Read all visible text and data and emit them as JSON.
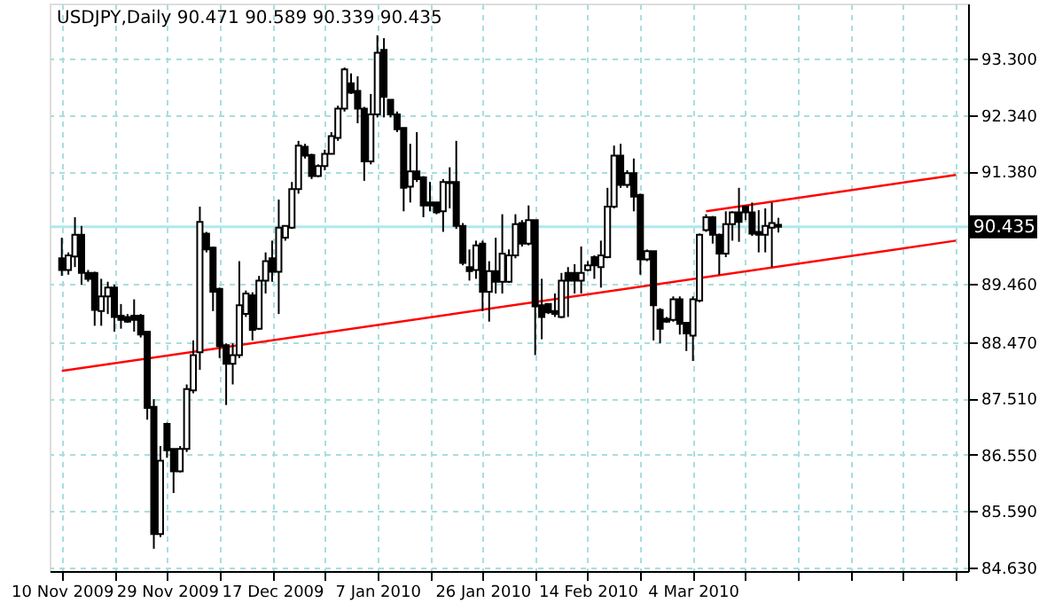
{
  "chart_data": {
    "type": "candlestick",
    "title": "USDJPY,Daily  90.471 90.589 90.339 90.435",
    "categories": [
      "10 Nov 2009",
      null,
      null,
      null,
      null,
      null,
      null,
      null,
      null,
      null,
      null,
      null,
      null,
      null,
      null,
      null,
      "29 Nov 2009",
      null,
      null,
      null,
      null,
      null,
      null,
      null,
      null,
      null,
      null,
      null,
      null,
      null,
      null,
      null,
      "17 Dec 2009",
      null,
      null,
      null,
      null,
      null,
      null,
      null,
      null,
      null,
      null,
      null,
      null,
      null,
      null,
      null,
      "7 Jan 2010",
      null,
      null,
      null,
      null,
      null,
      null,
      null,
      null,
      null,
      null,
      null,
      null,
      null,
      null,
      null,
      "26 Jan 2010",
      null,
      null,
      null,
      null,
      null,
      null,
      null,
      null,
      null,
      null,
      null,
      null,
      null,
      null,
      null,
      "14 Feb 2010",
      null,
      null,
      null,
      null,
      null,
      null,
      null,
      null,
      null,
      null,
      null,
      null,
      null,
      null,
      null,
      "4 Mar 2010",
      null,
      null,
      null,
      null,
      null,
      null,
      null,
      null,
      null,
      null,
      null,
      null,
      null,
      null,
      null,
      null,
      null,
      null,
      null,
      null,
      null,
      null,
      null,
      null,
      null,
      null,
      null,
      null,
      null,
      null,
      null,
      null,
      null,
      null,
      null,
      null,
      null,
      null,
      null,
      null
    ],
    "ohlc": [
      [
        89.9,
        90.25,
        89.6,
        89.7
      ],
      [
        89.7,
        90.0,
        89.62,
        89.95
      ],
      [
        89.93,
        90.6,
        89.75,
        90.3
      ],
      [
        90.3,
        90.45,
        89.45,
        89.65
      ],
      [
        89.65,
        89.7,
        89.5,
        89.55
      ],
      [
        89.65,
        89.67,
        88.75,
        89.02
      ],
      [
        89.0,
        89.55,
        88.75,
        89.25
      ],
      [
        89.25,
        89.5,
        88.95,
        89.4
      ],
      [
        89.4,
        89.45,
        88.65,
        88.9
      ],
      [
        88.92,
        89.12,
        88.7,
        88.85
      ],
      [
        88.9,
        88.95,
        88.8,
        88.82
      ],
      [
        88.92,
        89.2,
        88.65,
        88.85
      ],
      [
        88.92,
        88.95,
        88.55,
        88.6
      ],
      [
        88.65,
        88.65,
        87.15,
        87.35
      ],
      [
        87.37,
        87.5,
        84.95,
        85.2
      ],
      [
        85.2,
        86.7,
        85.15,
        86.45
      ],
      [
        87.08,
        87.1,
        86.5,
        86.63
      ],
      [
        86.65,
        86.65,
        85.9,
        86.27
      ],
      [
        86.27,
        86.7,
        86.25,
        86.65
      ],
      [
        86.65,
        87.75,
        86.6,
        87.67
      ],
      [
        87.65,
        88.5,
        87.6,
        88.25
      ],
      [
        88.3,
        90.78,
        88.0,
        90.52
      ],
      [
        90.32,
        90.35,
        90.0,
        90.05
      ],
      [
        90.08,
        90.1,
        89.0,
        89.33
      ],
      [
        89.38,
        89.4,
        88.2,
        88.4
      ],
      [
        88.42,
        88.45,
        87.4,
        88.1
      ],
      [
        88.1,
        88.45,
        87.75,
        88.25
      ],
      [
        88.25,
        89.85,
        88.2,
        89.1
      ],
      [
        88.95,
        89.35,
        88.9,
        89.3
      ],
      [
        89.27,
        89.32,
        88.5,
        88.68
      ],
      [
        88.7,
        89.6,
        88.68,
        89.52
      ],
      [
        89.52,
        90.0,
        89.3,
        89.85
      ],
      [
        89.9,
        90.2,
        89.5,
        89.67
      ],
      [
        89.67,
        90.9,
        88.95,
        90.42
      ],
      [
        90.25,
        90.45,
        90.2,
        90.45
      ],
      [
        90.42,
        91.2,
        90.4,
        91.08
      ],
      [
        91.08,
        91.9,
        91.0,
        91.82
      ],
      [
        91.8,
        91.85,
        91.6,
        91.65
      ],
      [
        91.66,
        91.68,
        91.25,
        91.3
      ],
      [
        91.3,
        91.5,
        91.28,
        91.47
      ],
      [
        91.47,
        91.75,
        91.4,
        91.68
      ],
      [
        91.68,
        92.05,
        91.68,
        91.98
      ],
      [
        91.95,
        92.5,
        91.9,
        92.45
      ],
      [
        92.45,
        93.15,
        92.4,
        93.12
      ],
      [
        92.88,
        93.05,
        92.7,
        92.72
      ],
      [
        92.75,
        93.0,
        92.2,
        92.45
      ],
      [
        92.45,
        92.48,
        91.22,
        91.55
      ],
      [
        91.55,
        92.7,
        91.5,
        92.35
      ],
      [
        92.35,
        93.7,
        92.3,
        93.4
      ],
      [
        93.45,
        93.65,
        92.3,
        92.65
      ],
      [
        92.6,
        92.6,
        92.3,
        92.35
      ],
      [
        92.35,
        92.4,
        92.05,
        92.1
      ],
      [
        92.12,
        92.12,
        90.7,
        91.1
      ],
      [
        91.12,
        91.85,
        90.85,
        91.38
      ],
      [
        91.38,
        92.05,
        91.2,
        91.25
      ],
      [
        91.28,
        91.3,
        90.6,
        90.8
      ],
      [
        90.85,
        91.2,
        90.7,
        90.8
      ],
      [
        90.85,
        90.85,
        90.65,
        90.68
      ],
      [
        90.7,
        91.25,
        90.35,
        91.2
      ],
      [
        91.2,
        91.45,
        90.75,
        91.18
      ],
      [
        91.2,
        91.9,
        90.4,
        90.45
      ],
      [
        90.45,
        90.5,
        89.78,
        89.82
      ],
      [
        89.75,
        90.05,
        89.52,
        89.68
      ],
      [
        89.7,
        90.2,
        89.55,
        90.12
      ],
      [
        90.15,
        90.2,
        89.0,
        89.33
      ],
      [
        89.33,
        89.85,
        88.82,
        89.68
      ],
      [
        89.68,
        90.25,
        89.3,
        89.5
      ],
      [
        89.5,
        90.65,
        89.3,
        89.98
      ],
      [
        89.5,
        90.05,
        89.48,
        89.95
      ],
      [
        89.95,
        90.65,
        89.9,
        90.48
      ],
      [
        90.5,
        90.55,
        90.1,
        90.15
      ],
      [
        90.15,
        90.8,
        90.12,
        90.55
      ],
      [
        90.55,
        90.55,
        88.25,
        89.08
      ],
      [
        89.1,
        89.55,
        88.52,
        88.9
      ],
      [
        89.12,
        89.12,
        88.95,
        88.98
      ],
      [
        89.0,
        89.3,
        88.9,
        88.95
      ],
      [
        88.9,
        89.65,
        88.88,
        89.52
      ],
      [
        89.65,
        89.75,
        88.9,
        89.52
      ],
      [
        89.65,
        89.8,
        89.3,
        89.52
      ],
      [
        89.52,
        90.1,
        89.3,
        89.65
      ],
      [
        89.7,
        89.85,
        89.68,
        89.78
      ],
      [
        89.92,
        89.95,
        89.55,
        89.78
      ],
      [
        89.75,
        90.2,
        89.4,
        89.95
      ],
      [
        89.92,
        91.1,
        89.9,
        90.78
      ],
      [
        90.78,
        91.82,
        90.75,
        91.65
      ],
      [
        91.65,
        91.85,
        91.1,
        91.15
      ],
      [
        91.15,
        91.4,
        91.1,
        91.35
      ],
      [
        91.35,
        91.6,
        90.7,
        90.95
      ],
      [
        90.98,
        91.0,
        89.62,
        89.88
      ],
      [
        89.88,
        90.05,
        89.85,
        90.02
      ],
      [
        90.02,
        90.02,
        88.5,
        89.1
      ],
      [
        89.02,
        89.05,
        88.45,
        88.7
      ],
      [
        88.87,
        88.9,
        88.8,
        88.82
      ],
      [
        88.85,
        89.25,
        88.82,
        89.2
      ],
      [
        89.2,
        89.25,
        88.6,
        88.78
      ],
      [
        88.8,
        88.8,
        88.32,
        88.62
      ],
      [
        88.58,
        89.25,
        88.15,
        89.2
      ],
      [
        89.18,
        90.32,
        89.15,
        90.3
      ],
      [
        90.38,
        90.65,
        90.35,
        90.6
      ],
      [
        90.6,
        90.62,
        90.15,
        90.3
      ],
      [
        90.3,
        90.32,
        89.62,
        89.98
      ],
      [
        89.98,
        90.7,
        89.92,
        90.48
      ],
      [
        90.48,
        90.7,
        90.2,
        90.68
      ],
      [
        90.68,
        91.1,
        90.18,
        90.52
      ],
      [
        90.78,
        90.8,
        90.55,
        90.68
      ],
      [
        90.68,
        90.85,
        90.28,
        90.32
      ],
      [
        90.35,
        90.72,
        90.0,
        90.3
      ],
      [
        90.3,
        90.75,
        90.0,
        90.45
      ],
      [
        90.42,
        90.85,
        89.75,
        90.5
      ],
      [
        90.471,
        90.589,
        90.339,
        90.435
      ],
      null,
      null,
      null,
      null,
      null,
      null,
      null,
      null,
      null,
      null,
      null,
      null,
      null,
      null,
      null,
      null,
      null,
      null,
      null,
      null,
      null,
      null,
      null,
      null,
      null,
      null,
      null
    ],
    "series": [
      {
        "type": "line",
        "color": "#ff0000",
        "values": [
          87.98,
          null,
          null,
          null,
          null,
          null,
          null,
          null,
          null,
          null,
          null,
          null,
          null,
          null,
          null,
          null,
          null,
          null,
          null,
          null,
          null,
          null,
          null,
          null,
          null,
          null,
          null,
          null,
          null,
          null,
          null,
          null,
          null,
          null,
          null,
          null,
          null,
          null,
          null,
          null,
          null,
          null,
          null,
          null,
          null,
          null,
          null,
          null,
          null,
          null,
          null,
          null,
          null,
          null,
          null,
          null,
          null,
          null,
          null,
          null,
          null,
          null,
          null,
          null,
          null,
          null,
          null,
          null,
          null,
          null,
          null,
          null,
          null,
          null,
          null,
          null,
          null,
          null,
          null,
          null,
          null,
          null,
          null,
          null,
          null,
          null,
          null,
          null,
          null,
          null,
          null,
          null,
          null,
          null,
          null,
          null,
          null,
          null,
          null,
          null,
          null,
          null,
          null,
          null,
          null,
          null,
          null,
          null,
          null,
          null,
          null,
          null,
          null,
          null,
          null,
          null,
          null,
          null,
          null,
          null,
          null,
          null,
          null,
          null,
          null,
          null,
          null,
          null,
          null,
          null,
          null,
          null,
          null,
          null,
          null,
          null,
          90.2
        ]
      },
      {
        "type": "line",
        "color": "#ff0000",
        "values": [
          null,
          null,
          null,
          null,
          null,
          null,
          null,
          null,
          null,
          null,
          null,
          null,
          null,
          null,
          null,
          null,
          null,
          null,
          null,
          null,
          null,
          null,
          null,
          null,
          null,
          null,
          null,
          null,
          null,
          null,
          null,
          null,
          null,
          null,
          null,
          null,
          null,
          null,
          null,
          null,
          null,
          null,
          null,
          null,
          null,
          null,
          null,
          null,
          null,
          null,
          null,
          null,
          null,
          null,
          null,
          null,
          null,
          null,
          null,
          null,
          null,
          null,
          null,
          null,
          null,
          null,
          null,
          null,
          null,
          null,
          null,
          null,
          null,
          null,
          null,
          null,
          null,
          null,
          null,
          null,
          null,
          null,
          null,
          null,
          null,
          null,
          null,
          null,
          null,
          null,
          null,
          null,
          null,
          null,
          null,
          null,
          null,
          null,
          90.7,
          null,
          null,
          null,
          null,
          null,
          null,
          null,
          null,
          null,
          null,
          null,
          null,
          null,
          null,
          null,
          null,
          null,
          null,
          null,
          null,
          null,
          null,
          null,
          null,
          null,
          null,
          null,
          null,
          null,
          null,
          null,
          null,
          null,
          null,
          null,
          null,
          null,
          91.32
        ]
      }
    ],
    "ref_lines": [
      {
        "axis": "y",
        "value": 90.435,
        "label": "90.435",
        "color": "#b0e8ec"
      }
    ],
    "ylim": [
      84.57,
      94.24
    ],
    "yticks": [
      {
        "value": 93.3,
        "label": "93.300"
      },
      {
        "value": 92.34,
        "label": "92.340"
      },
      {
        "value": 91.38,
        "label": "91.380"
      },
      {
        "value": 89.46,
        "label": "89.460"
      },
      {
        "value": 88.47,
        "label": "88.470"
      },
      {
        "value": 87.51,
        "label": "87.510"
      },
      {
        "value": 86.55,
        "label": "86.550"
      },
      {
        "value": 85.59,
        "label": "85.590"
      },
      {
        "value": 84.63,
        "label": "84.630"
      }
    ],
    "grid": true
  }
}
